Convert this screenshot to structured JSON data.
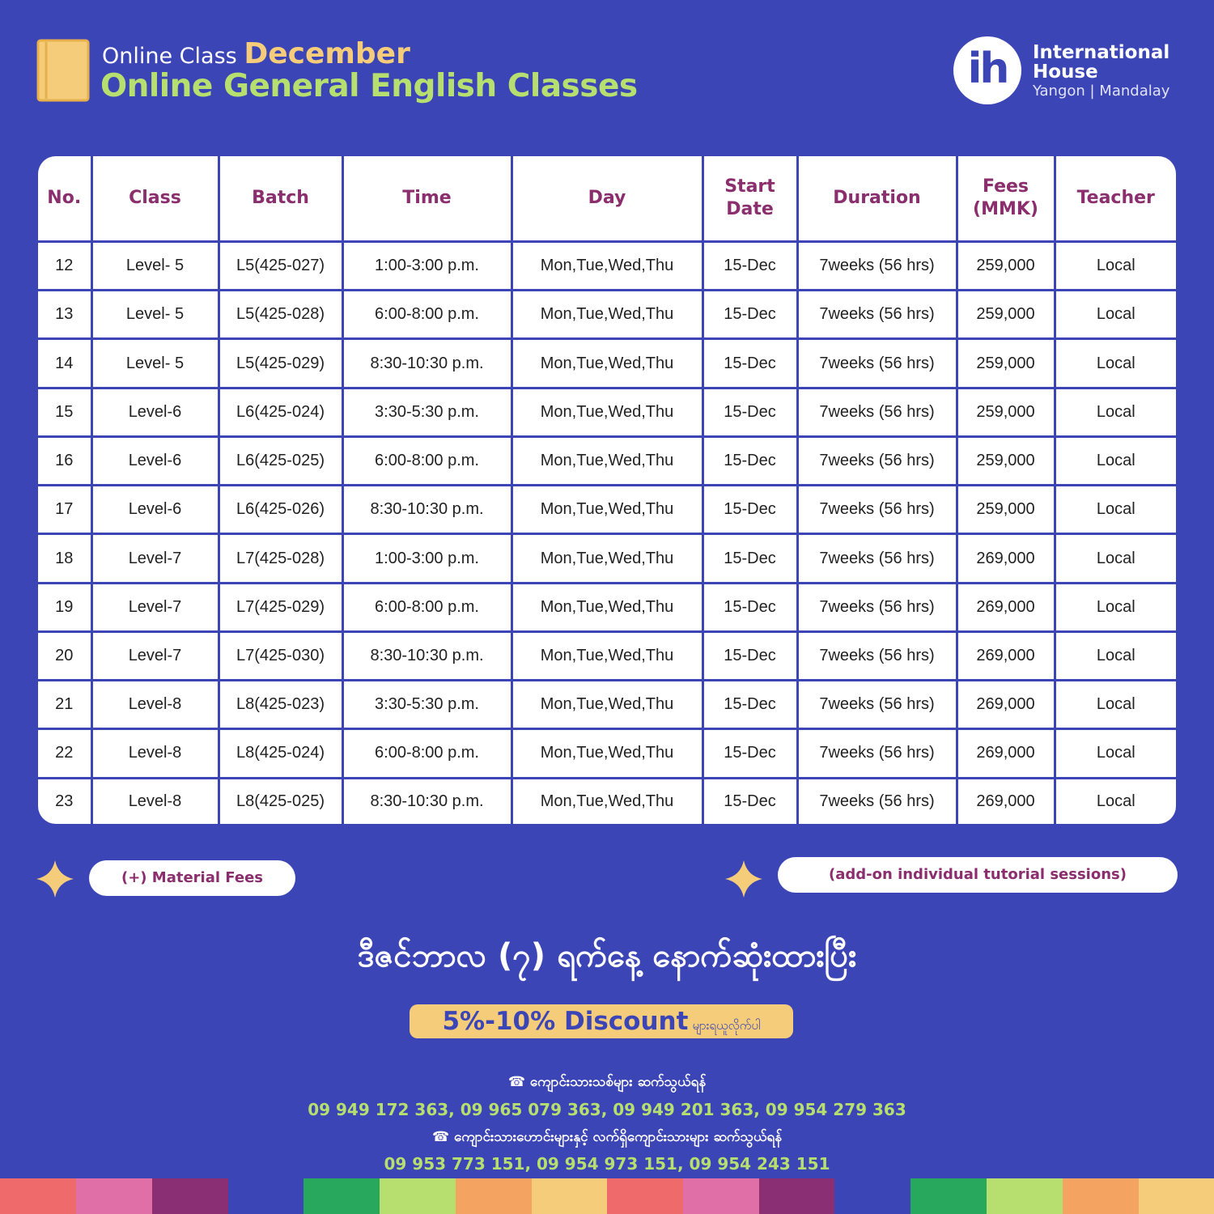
{
  "header": {
    "prefix": "Online Class",
    "month": "December",
    "title": "Online General English Classes"
  },
  "logo": {
    "mark": "ih",
    "line1": "International",
    "line2": "House",
    "line3": "Yangon | Mandalay"
  },
  "table": {
    "headers": [
      "No.",
      "Class",
      "Batch",
      "Time",
      "Day",
      "Start Date",
      "Duration",
      "Fees (MMK)",
      "Teacher"
    ],
    "rows": [
      [
        "12",
        "Level- 5",
        "L5(425-027)",
        "1:00-3:00 p.m.",
        "Mon,Tue,Wed,Thu",
        "15-Dec",
        "7weeks (56 hrs)",
        "259,000",
        "Local"
      ],
      [
        "13",
        "Level- 5",
        "L5(425-028)",
        "6:00-8:00 p.m.",
        "Mon,Tue,Wed,Thu",
        "15-Dec",
        "7weeks (56 hrs)",
        "259,000",
        "Local"
      ],
      [
        "14",
        "Level- 5",
        "L5(425-029)",
        "8:30-10:30 p.m.",
        "Mon,Tue,Wed,Thu",
        "15-Dec",
        "7weeks (56 hrs)",
        "259,000",
        "Local"
      ],
      [
        "15",
        "Level-6",
        "L6(425-024)",
        "3:30-5:30 p.m.",
        "Mon,Tue,Wed,Thu",
        "15-Dec",
        "7weeks (56 hrs)",
        "259,000",
        "Local"
      ],
      [
        "16",
        "Level-6",
        "L6(425-025)",
        "6:00-8:00 p.m.",
        "Mon,Tue,Wed,Thu",
        "15-Dec",
        "7weeks (56 hrs)",
        "259,000",
        "Local"
      ],
      [
        "17",
        "Level-6",
        "L6(425-026)",
        "8:30-10:30 p.m.",
        "Mon,Tue,Wed,Thu",
        "15-Dec",
        "7weeks (56 hrs)",
        "259,000",
        "Local"
      ],
      [
        "18",
        "Level-7",
        "L7(425-028)",
        "1:00-3:00 p.m.",
        "Mon,Tue,Wed,Thu",
        "15-Dec",
        "7weeks (56 hrs)",
        "269,000",
        "Local"
      ],
      [
        "19",
        "Level-7",
        "L7(425-029)",
        "6:00-8:00 p.m.",
        "Mon,Tue,Wed,Thu",
        "15-Dec",
        "7weeks (56 hrs)",
        "269,000",
        "Local"
      ],
      [
        "20",
        "Level-7",
        "L7(425-030)",
        "8:30-10:30 p.m.",
        "Mon,Tue,Wed,Thu",
        "15-Dec",
        "7weeks (56 hrs)",
        "269,000",
        "Local"
      ],
      [
        "21",
        "Level-8",
        "L8(425-023)",
        "3:30-5:30 p.m.",
        "Mon,Tue,Wed,Thu",
        "15-Dec",
        "7weeks (56 hrs)",
        "269,000",
        "Local"
      ],
      [
        "22",
        "Level-8",
        "L8(425-024)",
        "6:00-8:00 p.m.",
        "Mon,Tue,Wed,Thu",
        "15-Dec",
        "7weeks (56 hrs)",
        "269,000",
        "Local"
      ],
      [
        "23",
        "Level-8",
        "L8(425-025)",
        "8:30-10:30 p.m.",
        "Mon,Tue,Wed,Thu",
        "15-Dec",
        "7weeks (56 hrs)",
        "269,000",
        "Local"
      ]
    ]
  },
  "notes": {
    "left": "(+) Material Fees",
    "right": "(add-on individual tutorial sessions)"
  },
  "promo": {
    "deadline": "ဒီဇင်ဘာလ (၇) ရက်နေ့ နောက်ဆုံးထားပြီး",
    "discount": "5%-10% Discount",
    "discount_suffix": "များရယူလိုက်ပါ"
  },
  "contacts": [
    {
      "label": "ကျောင်းသားသစ်များ ဆက်သွယ်ရန်",
      "phones": "09 949 172 363, 09 965 079 363, 09 949 201 363, 09 954 279 363"
    },
    {
      "label": "ကျောင်းသားဟောင်းများနှင့် လက်ရှိကျောင်းသားများ ဆက်သွယ်ရန်",
      "phones": "09 953 773 151, 09 954 973 151, 09 954 243 151"
    }
  ]
}
